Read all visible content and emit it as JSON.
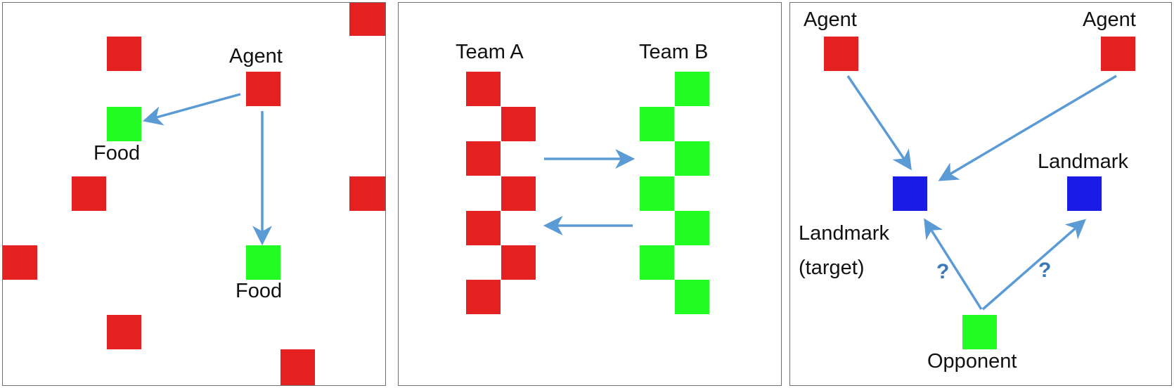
{
  "colors": {
    "agent": "#e42222",
    "food": "#22fc22",
    "landmark": "#1b1be6",
    "arrow": "#5b9bd5",
    "question": "#3a78b8"
  },
  "panel_foraging": {
    "agent_label": "Agent",
    "food_label_1": "Food",
    "food_label_2": "Food"
  },
  "panel_teams": {
    "team_a_label": "Team A",
    "team_b_label": "Team B"
  },
  "panel_deception": {
    "agent_label_left": "Agent",
    "agent_label_right": "Agent",
    "target_label_line1": "Landmark",
    "target_label_line2": "(target)",
    "landmark_label": "Landmark",
    "opponent_label": "Opponent",
    "question_left": "?",
    "question_right": "?"
  }
}
